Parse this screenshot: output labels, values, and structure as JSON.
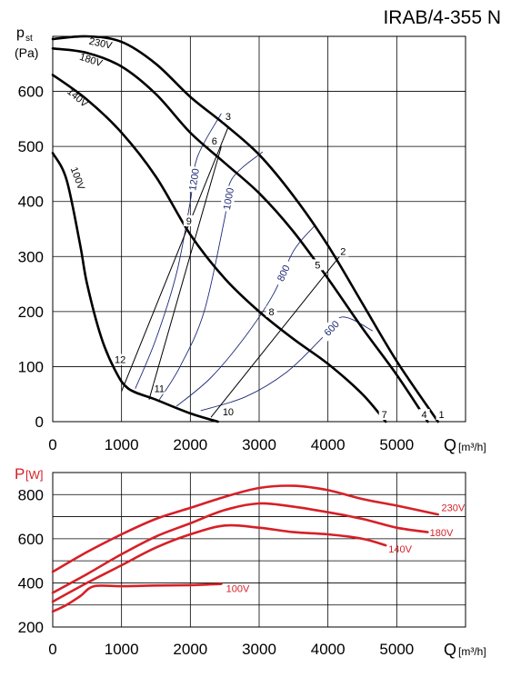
{
  "chart_data": [
    {
      "type": "line",
      "title": "IRAB/4-355 N",
      "ylabel_main": "p",
      "ylabel_sub": "st",
      "ylabel_unit": "(Pa)",
      "xlabel": "Q",
      "xlabel_unit": "[m³/h]",
      "xlim": [
        0,
        6000
      ],
      "ylim": [
        0,
        700
      ],
      "x_ticks": [
        "0",
        "1000",
        "2000",
        "3000",
        "4000",
        "5000"
      ],
      "y_ticks": [
        "0",
        "100",
        "200",
        "300",
        "400",
        "500",
        "600"
      ],
      "grid": true,
      "series": [
        {
          "name": "230V",
          "points": [
            [
              0,
              695
            ],
            [
              500,
              700
            ],
            [
              1000,
              690
            ],
            [
              1500,
              650
            ],
            [
              2000,
              590
            ],
            [
              2500,
              540
            ],
            [
              3000,
              485
            ],
            [
              3500,
              410
            ],
            [
              4000,
              320
            ],
            [
              4500,
              215
            ],
            [
              5000,
              110
            ],
            [
              5600,
              0
            ]
          ]
        },
        {
          "name": "180V",
          "points": [
            [
              0,
              678
            ],
            [
              500,
              670
            ],
            [
              1000,
              645
            ],
            [
              1500,
              595
            ],
            [
              2000,
              525
            ],
            [
              2500,
              470
            ],
            [
              3000,
              415
            ],
            [
              3500,
              345
            ],
            [
              4000,
              260
            ],
            [
              4500,
              170
            ],
            [
              5000,
              85
            ],
            [
              5450,
              0
            ]
          ]
        },
        {
          "name": "140V",
          "points": [
            [
              0,
              630
            ],
            [
              500,
              585
            ],
            [
              1000,
              525
            ],
            [
              1500,
              445
            ],
            [
              2000,
              340
            ],
            [
              2500,
              260
            ],
            [
              3000,
              200
            ],
            [
              3500,
              150
            ],
            [
              4000,
              105
            ],
            [
              4500,
              50
            ],
            [
              4840,
              0
            ]
          ]
        },
        {
          "name": "100V",
          "points": [
            [
              0,
              488
            ],
            [
              200,
              440
            ],
            [
              400,
              320
            ],
            [
              500,
              250
            ],
            [
              700,
              155
            ],
            [
              900,
              95
            ],
            [
              1100,
              60
            ],
            [
              1500,
              40
            ],
            [
              2000,
              15
            ],
            [
              2400,
              0
            ]
          ]
        }
      ],
      "speed_curves": [
        {
          "label": "1200",
          "points": [
            [
              1200,
              60
            ],
            [
              1500,
              150
            ],
            [
              1800,
              270
            ],
            [
              2000,
              400
            ],
            [
              2100,
              480
            ],
            [
              2450,
              560
            ]
          ]
        },
        {
          "label": "1000",
          "points": [
            [
              1550,
              40
            ],
            [
              1850,
              100
            ],
            [
              2200,
              200
            ],
            [
              2500,
              370
            ],
            [
              2600,
              440
            ],
            [
              3050,
              490
            ]
          ]
        },
        {
          "label": "800",
          "points": [
            [
              1800,
              28
            ],
            [
              2300,
              80
            ],
            [
              2800,
              155
            ],
            [
              3200,
              230
            ],
            [
              3500,
              310
            ],
            [
              3800,
              355
            ]
          ]
        },
        {
          "label": "600",
          "points": [
            [
              2150,
              20
            ],
            [
              2800,
              45
            ],
            [
              3400,
              90
            ],
            [
              3900,
              150
            ],
            [
              4200,
              190
            ],
            [
              4650,
              165
            ]
          ]
        }
      ],
      "system_lines": [
        {
          "from_label": "12",
          "to_label": "3",
          "from": [
            1000,
            55
          ],
          "to": [
            2550,
            535
          ]
        },
        {
          "from_label": "11",
          "to_label": "6",
          "from": [
            1400,
            40
          ],
          "to": [
            2450,
            500
          ]
        },
        {
          "from_label": "10",
          "to_label": "2",
          "from": [
            2300,
            8
          ],
          "to": [
            4200,
            305
          ]
        }
      ],
      "point_labels": [
        {
          "label": "1",
          "x": 5650,
          "y": 8
        },
        {
          "label": "4",
          "x": 5400,
          "y": 8
        },
        {
          "label": "7",
          "x": 4820,
          "y": 8
        },
        {
          "label": "2",
          "x": 4220,
          "y": 305
        },
        {
          "label": "5",
          "x": 3850,
          "y": 280
        },
        {
          "label": "8",
          "x": 3180,
          "y": 195
        },
        {
          "label": "3",
          "x": 2550,
          "y": 550
        },
        {
          "label": "6",
          "x": 2350,
          "y": 505
        },
        {
          "label": "9",
          "x": 1980,
          "y": 360
        },
        {
          "label": "12",
          "x": 980,
          "y": 108
        },
        {
          "label": "11",
          "x": 1550,
          "y": 55
        },
        {
          "label": "10",
          "x": 2550,
          "y": 13
        }
      ],
      "curve_labels": [
        {
          "label": "230V",
          "x": 520,
          "y": 686
        },
        {
          "label": "180V",
          "x": 380,
          "y": 658
        },
        {
          "label": "140V",
          "x": 200,
          "y": 598
        },
        {
          "label": "100V",
          "x": 260,
          "y": 460
        }
      ],
      "colors": {
        "curve": "#000000",
        "speed": "#1e2a78",
        "grid": "#000000"
      }
    },
    {
      "type": "line",
      "ylabel_main": "P",
      "ylabel_unit": "[W]",
      "xlabel": "Q",
      "xlabel_unit": "[m³/h]",
      "xlim": [
        0,
        6000
      ],
      "ylim": [
        200,
        900
      ],
      "x_ticks": [
        "0",
        "1000",
        "2000",
        "3000",
        "4000",
        "5000"
      ],
      "y_ticks": [
        "200",
        "400",
        "600",
        "800"
      ],
      "grid": true,
      "series": [
        {
          "name": "230V",
          "points": [
            [
              0,
              450
            ],
            [
              500,
              540
            ],
            [
              1000,
              620
            ],
            [
              1500,
              690
            ],
            [
              2000,
              740
            ],
            [
              2500,
              790
            ],
            [
              3000,
              830
            ],
            [
              3500,
              840
            ],
            [
              4000,
              820
            ],
            [
              4500,
              780
            ],
            [
              5000,
              750
            ],
            [
              5600,
              710
            ]
          ]
        },
        {
          "name": "180V",
          "points": [
            [
              0,
              355
            ],
            [
              500,
              440
            ],
            [
              1000,
              530
            ],
            [
              1500,
              610
            ],
            [
              2000,
              670
            ],
            [
              2500,
              730
            ],
            [
              3000,
              760
            ],
            [
              3500,
              745
            ],
            [
              4000,
              720
            ],
            [
              4500,
              690
            ],
            [
              5000,
              650
            ],
            [
              5450,
              630
            ]
          ]
        },
        {
          "name": "140V",
          "points": [
            [
              0,
              315
            ],
            [
              500,
              400
            ],
            [
              1000,
              480
            ],
            [
              1500,
              560
            ],
            [
              2000,
              620
            ],
            [
              2500,
              660
            ],
            [
              3000,
              650
            ],
            [
              3500,
              630
            ],
            [
              4000,
              620
            ],
            [
              4500,
              600
            ],
            [
              4840,
              570
            ]
          ]
        },
        {
          "name": "100V",
          "points": [
            [
              0,
              270
            ],
            [
              200,
              300
            ],
            [
              400,
              340
            ],
            [
              600,
              385
            ],
            [
              1000,
              385
            ],
            [
              1500,
              388
            ],
            [
              2000,
              390
            ],
            [
              2450,
              395
            ]
          ]
        }
      ],
      "curve_labels": [
        {
          "label": "230V",
          "x": 5650,
          "y": 742
        },
        {
          "label": "180V",
          "x": 5480,
          "y": 628
        },
        {
          "label": "140V",
          "x": 4880,
          "y": 555
        },
        {
          "label": "100V",
          "x": 2520,
          "y": 375
        }
      ],
      "colors": {
        "curve": "#d62027",
        "label": "#d62027",
        "grid": "#000000"
      }
    }
  ]
}
